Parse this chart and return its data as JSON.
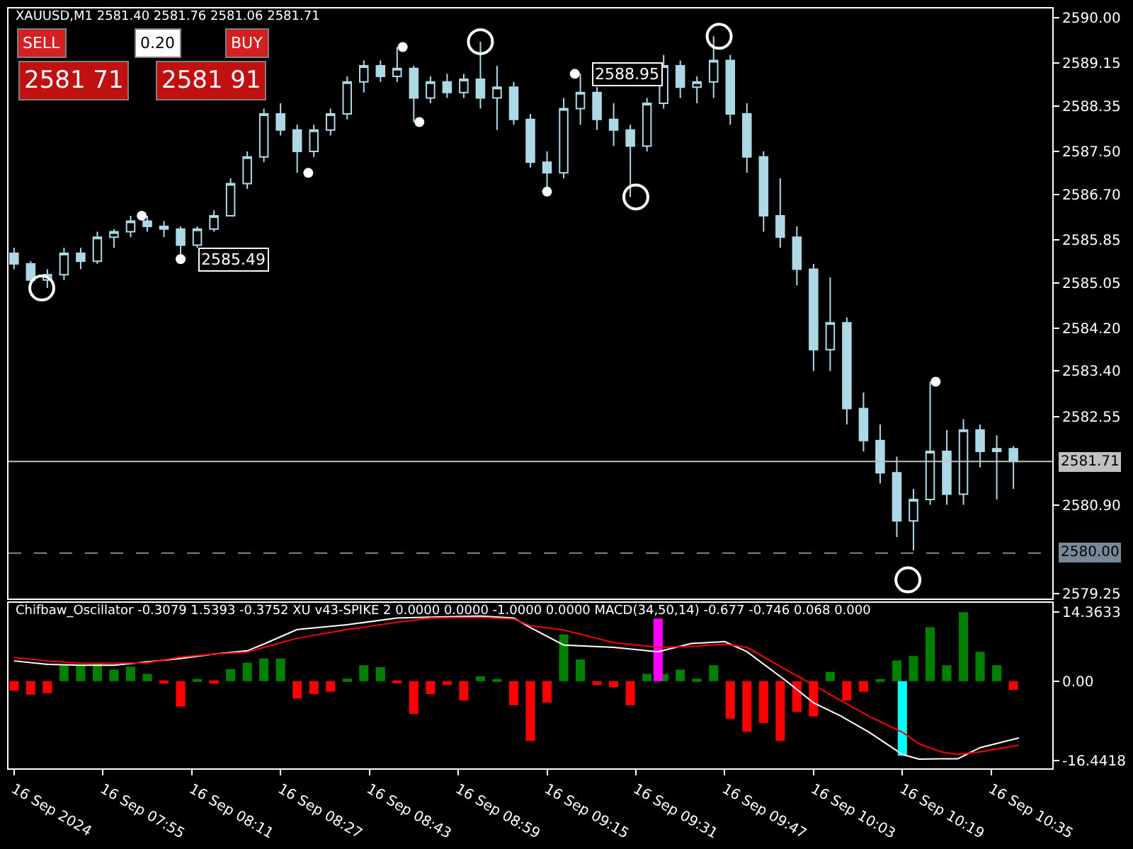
{
  "chart_data": [
    {
      "type": "candlestick",
      "title": "XAUUSD,M1 2581.40 2581.76 2581.06 2581.71",
      "color": "#add8e6",
      "x": [
        "2024-09-16T07:39",
        "2024-09-16T07:42",
        "2024-09-16T07:45",
        "2024-09-16T07:48",
        "2024-09-16T07:51",
        "2024-09-16T07:54",
        "2024-09-16T07:57",
        "2024-09-16T08:00",
        "2024-09-16T08:03",
        "2024-09-16T08:06",
        "2024-09-16T08:09",
        "2024-09-16T08:12",
        "2024-09-16T08:15",
        "2024-09-16T08:18",
        "2024-09-16T08:21",
        "2024-09-16T08:24",
        "2024-09-16T08:27",
        "2024-09-16T08:30",
        "2024-09-16T08:33",
        "2024-09-16T08:36",
        "2024-09-16T08:39",
        "2024-09-16T08:42",
        "2024-09-16T08:45",
        "2024-09-16T08:48",
        "2024-09-16T08:51",
        "2024-09-16T08:54",
        "2024-09-16T08:57",
        "2024-09-16T09:00",
        "2024-09-16T09:03",
        "2024-09-16T09:06",
        "2024-09-16T09:09",
        "2024-09-16T09:12",
        "2024-09-16T09:15",
        "2024-09-16T09:18",
        "2024-09-16T09:21",
        "2024-09-16T09:24",
        "2024-09-16T09:27",
        "2024-09-16T09:30",
        "2024-09-16T09:33",
        "2024-09-16T09:36",
        "2024-09-16T09:39",
        "2024-09-16T09:42",
        "2024-09-16T09:45",
        "2024-09-16T09:48",
        "2024-09-16T09:51",
        "2024-09-16T09:54",
        "2024-09-16T09:57",
        "2024-09-16T10:00",
        "2024-09-16T10:03",
        "2024-09-16T10:06",
        "2024-09-16T10:09",
        "2024-09-16T10:12",
        "2024-09-16T10:15",
        "2024-09-16T10:18",
        "2024-09-16T10:21",
        "2024-09-16T10:24",
        "2024-09-16T10:27",
        "2024-09-16T10:30",
        "2024-09-16T10:33",
        "2024-09-16T10:36",
        "2024-09-16T10:39"
      ],
      "ohlc": [
        [
          2585.6,
          2585.7,
          2585.3,
          2585.4
        ],
        [
          2585.4,
          2585.45,
          2585.0,
          2585.1
        ],
        [
          2585.1,
          2585.3,
          2584.95,
          2585.2
        ],
        [
          2585.2,
          2585.7,
          2585.1,
          2585.6
        ],
        [
          2585.6,
          2585.7,
          2585.3,
          2585.45
        ],
        [
          2585.45,
          2586.0,
          2585.4,
          2585.9
        ],
        [
          2585.9,
          2586.05,
          2585.7,
          2586.0
        ],
        [
          2586.0,
          2586.3,
          2585.9,
          2586.2
        ],
        [
          2586.2,
          2586.3,
          2586.0,
          2586.1
        ],
        [
          2586.1,
          2586.2,
          2585.9,
          2586.05
        ],
        [
          2586.05,
          2586.1,
          2585.49,
          2585.75
        ],
        [
          2585.75,
          2586.1,
          2585.7,
          2586.05
        ],
        [
          2586.05,
          2586.4,
          2586.0,
          2586.3
        ],
        [
          2586.3,
          2587.0,
          2586.3,
          2586.9
        ],
        [
          2586.9,
          2587.5,
          2586.8,
          2587.4
        ],
        [
          2587.4,
          2588.3,
          2587.3,
          2588.2
        ],
        [
          2588.2,
          2588.4,
          2587.8,
          2587.9
        ],
        [
          2587.9,
          2588.0,
          2587.1,
          2587.5
        ],
        [
          2587.5,
          2588.0,
          2587.4,
          2587.9
        ],
        [
          2587.9,
          2588.3,
          2587.8,
          2588.2
        ],
        [
          2588.2,
          2588.9,
          2588.1,
          2588.8
        ],
        [
          2588.8,
          2589.2,
          2588.6,
          2589.1
        ],
        [
          2589.1,
          2589.2,
          2588.8,
          2588.9
        ],
        [
          2588.9,
          2589.45,
          2588.8,
          2589.05
        ],
        [
          2589.05,
          2589.1,
          2588.05,
          2588.5
        ],
        [
          2588.5,
          2588.9,
          2588.4,
          2588.8
        ],
        [
          2588.8,
          2588.95,
          2588.5,
          2588.6
        ],
        [
          2588.6,
          2588.95,
          2588.5,
          2588.85
        ],
        [
          2588.85,
          2589.55,
          2588.3,
          2588.5
        ],
        [
          2588.5,
          2589.1,
          2587.9,
          2588.7
        ],
        [
          2588.7,
          2588.8,
          2588.0,
          2588.1
        ],
        [
          2588.1,
          2588.2,
          2587.2,
          2587.3
        ],
        [
          2587.3,
          2587.5,
          2586.75,
          2587.1
        ],
        [
          2587.1,
          2588.5,
          2587.0,
          2588.3
        ],
        [
          2588.3,
          2588.95,
          2588.0,
          2588.6
        ],
        [
          2588.6,
          2588.7,
          2587.9,
          2588.1
        ],
        [
          2588.1,
          2588.4,
          2587.6,
          2587.9
        ],
        [
          2587.9,
          2588.0,
          2586.65,
          2587.6
        ],
        [
          2587.6,
          2588.5,
          2587.5,
          2588.4
        ],
        [
          2588.4,
          2589.3,
          2588.3,
          2589.1
        ],
        [
          2589.1,
          2589.2,
          2588.5,
          2588.7
        ],
        [
          2588.7,
          2588.9,
          2588.4,
          2588.8
        ],
        [
          2588.8,
          2589.65,
          2588.5,
          2589.2
        ],
        [
          2589.2,
          2589.3,
          2588.0,
          2588.2
        ],
        [
          2588.2,
          2588.4,
          2587.1,
          2587.4
        ],
        [
          2587.4,
          2587.5,
          2586.0,
          2586.3
        ],
        [
          2586.3,
          2587.0,
          2585.7,
          2585.9
        ],
        [
          2585.9,
          2586.1,
          2585.0,
          2585.3
        ],
        [
          2585.3,
          2585.4,
          2583.4,
          2583.8
        ],
        [
          2583.8,
          2585.15,
          2583.4,
          2584.3
        ],
        [
          2584.3,
          2584.4,
          2582.4,
          2582.7
        ],
        [
          2582.7,
          2583.0,
          2581.9,
          2582.1
        ],
        [
          2582.1,
          2582.4,
          2581.3,
          2581.5
        ],
        [
          2581.5,
          2581.8,
          2580.3,
          2580.6
        ],
        [
          2580.6,
          2581.2,
          2580.05,
          2581.0
        ],
        [
          2581.0,
          2583.2,
          2580.9,
          2581.9
        ],
        [
          2581.9,
          2582.3,
          2580.9,
          2581.1
        ],
        [
          2581.1,
          2582.5,
          2580.9,
          2582.3
        ],
        [
          2582.3,
          2582.4,
          2581.6,
          2581.9
        ],
        [
          2581.9,
          2582.2,
          2581.0,
          2581.95
        ],
        [
          2581.95,
          2582.0,
          2581.2,
          2581.71
        ]
      ],
      "series": [
        {
          "type": "scatter",
          "marker": "circle",
          "color": "#ffffff",
          "x": [
            "2024-09-16T08:02",
            "2024-09-16T08:09",
            "2024-09-16T08:32",
            "2024-09-16T08:49",
            "2024-09-16T08:52",
            "2024-09-16T09:15",
            "2024-09-16T09:20",
            "2024-09-16T10:25"
          ],
          "values": [
            2586.3,
            2585.49,
            2587.1,
            2589.45,
            2588.05,
            2586.75,
            2588.95,
            2583.2
          ]
        },
        {
          "type": "scatter",
          "marker": "circle",
          "color": "#ffffff",
          "x": [
            "2024-09-16T07:44",
            "2024-09-16T09:03",
            "2024-09-16T09:31",
            "2024-09-16T09:46",
            "2024-09-16T10:20"
          ],
          "values": [
            2584.95,
            2589.55,
            2586.65,
            2589.65,
            2579.5
          ]
        }
      ],
      "annotations": [
        "SELL",
        "0.20",
        "BUY",
        "2581 71",
        "2581 91",
        {
          "text": "2585.49",
          "x": "2024-09-16T08:09",
          "y": 2585.49
        },
        {
          "text": "2588.95",
          "x": "2024-09-16T09:20",
          "y": 2588.95
        }
      ],
      "ref_lines": [
        {
          "axis": "y",
          "value": 2581.71,
          "label": "2581.71",
          "color": "#c0c0c0",
          "line_style": "solid"
        },
        {
          "axis": "y",
          "value": 2580.0,
          "label": "2580.00",
          "color": "#778899",
          "line_style": "dashed"
        }
      ],
      "xlim": [
        "2024-09-16T07:38",
        "2024-09-16T10:46"
      ],
      "ylim": [
        2579.15,
        2590.17
      ],
      "yticks": [
        {
          "value": 2590.0,
          "label": "2590.00"
        },
        2589.15,
        2588.35,
        {
          "value": 2587.5,
          "label": "2587.50"
        },
        {
          "value": 2586.7,
          "label": "2586.70"
        },
        2585.85,
        2585.05,
        {
          "value": 2584.2,
          "label": "2584.20"
        },
        {
          "value": 2583.4,
          "label": "2583.40"
        },
        2582.55,
        {
          "value": 2580.9,
          "label": "2580.90"
        },
        2579.25
      ],
      "tick_labels": "y"
    },
    {
      "type": "bar",
      "title": "Chifbaw_Oscillator -0.3079 1.5393 -0.3752 XU v43-SPIKE 2 0.0000 0.0000 -1.0000 0.0000 MACD(34,50,14) -0.677 -0.746 0.068 0.000",
      "x": [
        "2024-09-16T07:39",
        "2024-09-16T07:42",
        "2024-09-16T07:45",
        "2024-09-16T07:48",
        "2024-09-16T07:51",
        "2024-09-16T07:54",
        "2024-09-16T07:57",
        "2024-09-16T08:00",
        "2024-09-16T08:03",
        "2024-09-16T08:06",
        "2024-09-16T08:09",
        "2024-09-16T08:12",
        "2024-09-16T08:15",
        "2024-09-16T08:18",
        "2024-09-16T08:21",
        "2024-09-16T08:24",
        "2024-09-16T08:27",
        "2024-09-16T08:30",
        "2024-09-16T08:33",
        "2024-09-16T08:36",
        "2024-09-16T08:39",
        "2024-09-16T08:42",
        "2024-09-16T08:45",
        "2024-09-16T08:48",
        "2024-09-16T08:51",
        "2024-09-16T08:54",
        "2024-09-16T08:57",
        "2024-09-16T09:00",
        "2024-09-16T09:03",
        "2024-09-16T09:06",
        "2024-09-16T09:09",
        "2024-09-16T09:12",
        "2024-09-16T09:15",
        "2024-09-16T09:18",
        "2024-09-16T09:21",
        "2024-09-16T09:24",
        "2024-09-16T09:27",
        "2024-09-16T09:30",
        "2024-09-16T09:33",
        "2024-09-16T09:36",
        "2024-09-16T09:39",
        "2024-09-16T09:42",
        "2024-09-16T09:45",
        "2024-09-16T09:48",
        "2024-09-16T09:51",
        "2024-09-16T09:54",
        "2024-09-16T09:57",
        "2024-09-16T10:00",
        "2024-09-16T10:03",
        "2024-09-16T10:06",
        "2024-09-16T10:09",
        "2024-09-16T10:12",
        "2024-09-16T10:15",
        "2024-09-16T10:18",
        "2024-09-16T10:21",
        "2024-09-16T10:24",
        "2024-09-16T10:27",
        "2024-09-16T10:30",
        "2024-09-16T10:33",
        "2024-09-16T10:36",
        "2024-09-16T10:39"
      ],
      "series": [
        {
          "color": "#008000",
          "values": [
            null,
            null,
            null,
            3.3,
            3.3,
            3.8,
            2.4,
            3,
            1.5,
            null,
            null,
            0.3,
            null,
            2.5,
            3.8,
            4.7,
            4.7,
            null,
            null,
            null,
            0.5,
            3.3,
            2.9,
            null,
            null,
            null,
            null,
            null,
            1,
            0.3,
            null,
            null,
            null,
            9.7,
            4.5,
            null,
            null,
            null,
            1.5,
            1.5,
            2.4,
            0.5,
            3.3,
            null,
            null,
            null,
            null,
            null,
            null,
            1.9,
            null,
            null,
            0.3,
            4.3,
            5.2,
            11.2,
            3.3,
            14.3,
            6.1,
            3.3,
            null
          ]
        },
        {
          "color": "#ff0000",
          "values": [
            -2,
            -2.8,
            -2.5,
            null,
            null,
            null,
            null,
            null,
            null,
            -0.5,
            -5.3,
            null,
            -0.5,
            null,
            null,
            null,
            null,
            -3.6,
            -2.7,
            -2.2,
            null,
            null,
            null,
            -0.4,
            -6.8,
            -2.7,
            -0.8,
            -4,
            null,
            null,
            -5,
            -12.4,
            -4.5,
            null,
            null,
            -0.8,
            -1.3,
            -5,
            null,
            null,
            null,
            null,
            null,
            -7.8,
            -10.5,
            -8.7,
            -12.4,
            -6.4,
            -7.3,
            null,
            -4,
            -2.2,
            null,
            null,
            null,
            null,
            null,
            null,
            null,
            null,
            -1.8
          ]
        },
        {
          "color": "#ff00ff",
          "x": [
            "2024-09-16T09:35"
          ],
          "values": [
            13.0
          ]
        },
        {
          "color": "#00ffff",
          "x": [
            "2024-09-16T10:19"
          ],
          "values": [
            -15.5
          ]
        },
        {
          "type": "line",
          "color": "#ffffff",
          "x": [
            "2024-09-16T07:39",
            "2024-09-16T07:45",
            "2024-09-16T07:51",
            "2024-09-16T07:57",
            "2024-09-16T08:03",
            "2024-09-16T08:09",
            "2024-09-16T08:15",
            "2024-09-16T08:21",
            "2024-09-16T08:24",
            "2024-09-16T08:30",
            "2024-09-16T08:39",
            "2024-09-16T08:48",
            "2024-09-16T08:54",
            "2024-09-16T09:03",
            "2024-09-16T09:09",
            "2024-09-16T09:12",
            "2024-09-16T09:18",
            "2024-09-16T09:27",
            "2024-09-16T09:35",
            "2024-09-16T09:41",
            "2024-09-16T09:47",
            "2024-09-16T09:51",
            "2024-09-16T09:58",
            "2024-09-16T10:03",
            "2024-09-16T10:08",
            "2024-09-16T10:13",
            "2024-09-16T10:19",
            "2024-09-16T10:22",
            "2024-09-16T10:26",
            "2024-09-16T10:29",
            "2024-09-16T10:33",
            "2024-09-16T10:40"
          ],
          "values": [
            4.2,
            3.5,
            3.3,
            3.3,
            4.0,
            4.7,
            5.6,
            6.3,
            7.7,
            10.7,
            11.7,
            13.1,
            13.3,
            13.5,
            13.1,
            11.1,
            7.5,
            7.0,
            6.1,
            7.8,
            8.2,
            6.1,
            0.1,
            -4.5,
            -7.3,
            -10.6,
            -15.2,
            -16.2,
            -16.1,
            -16.1,
            -13.8,
            -11.8
          ]
        },
        {
          "type": "line",
          "color": "#ff0000",
          "x": [
            "2024-09-16T07:39",
            "2024-09-16T07:45",
            "2024-09-16T07:51",
            "2024-09-16T07:57",
            "2024-09-16T08:03",
            "2024-09-16T08:09",
            "2024-09-16T08:15",
            "2024-09-16T08:21",
            "2024-09-16T08:24",
            "2024-09-16T08:30",
            "2024-09-16T08:39",
            "2024-09-16T08:48",
            "2024-09-16T08:54",
            "2024-09-16T09:03",
            "2024-09-16T09:09",
            "2024-09-16T09:12",
            "2024-09-16T09:18",
            "2024-09-16T09:27",
            "2024-09-16T09:35",
            "2024-09-16T09:41",
            "2024-09-16T09:47",
            "2024-09-16T09:51",
            "2024-09-16T09:58",
            "2024-09-16T10:03",
            "2024-09-16T10:08",
            "2024-09-16T10:13",
            "2024-09-16T10:19",
            "2024-09-16T10:22",
            "2024-09-16T10:26",
            "2024-09-16T10:29",
            "2024-09-16T10:33",
            "2024-09-16T10:40"
          ],
          "values": [
            4.9,
            4.2,
            3.7,
            3.7,
            3.8,
            5.0,
            5.6,
            6.0,
            7.0,
            8.9,
            10.7,
            12.2,
            13.1,
            13.2,
            12.9,
            11.5,
            10.6,
            8.0,
            7.0,
            7.2,
            7.7,
            7.0,
            2.4,
            -0.8,
            -4.1,
            -7.3,
            -10.6,
            -13.0,
            -14.7,
            -15.2,
            -14.7,
            -13.3
          ]
        }
      ],
      "xlim": [
        "2024-09-16T07:38",
        "2024-09-16T10:46"
      ],
      "ylim": [
        -18.1,
        16.3
      ],
      "yticks": [
        14.3633,
        {
          "value": 0,
          "label": "0.00"
        },
        -16.4418
      ],
      "xticks": [
        {
          "value": "2024-09-16T07:39",
          "label": "16 Sep 2024"
        },
        {
          "value": "2024-09-16T07:55",
          "label": "16 Sep 07:55"
        },
        {
          "value": "2024-09-16T08:11",
          "label": "16 Sep 08:11"
        },
        {
          "value": "2024-09-16T08:27",
          "label": "16 Sep 08:27"
        },
        {
          "value": "2024-09-16T08:43",
          "label": "16 Sep 08:43"
        },
        {
          "value": "2024-09-16T08:59",
          "label": "16 Sep 08:59"
        },
        {
          "value": "2024-09-16T09:15",
          "label": "16 Sep 09:15"
        },
        {
          "value": "2024-09-16T09:31",
          "label": "16 Sep 09:31"
        },
        {
          "value": "2024-09-16T09:47",
          "label": "16 Sep 09:47"
        },
        {
          "value": "2024-09-16T10:03",
          "label": "16 Sep 10:03"
        },
        {
          "value": "2024-09-16T10:19",
          "label": "16 Sep 10:19"
        },
        {
          "value": "2024-09-16T10:35",
          "label": "16 Sep 10:35"
        }
      ]
    }
  ]
}
